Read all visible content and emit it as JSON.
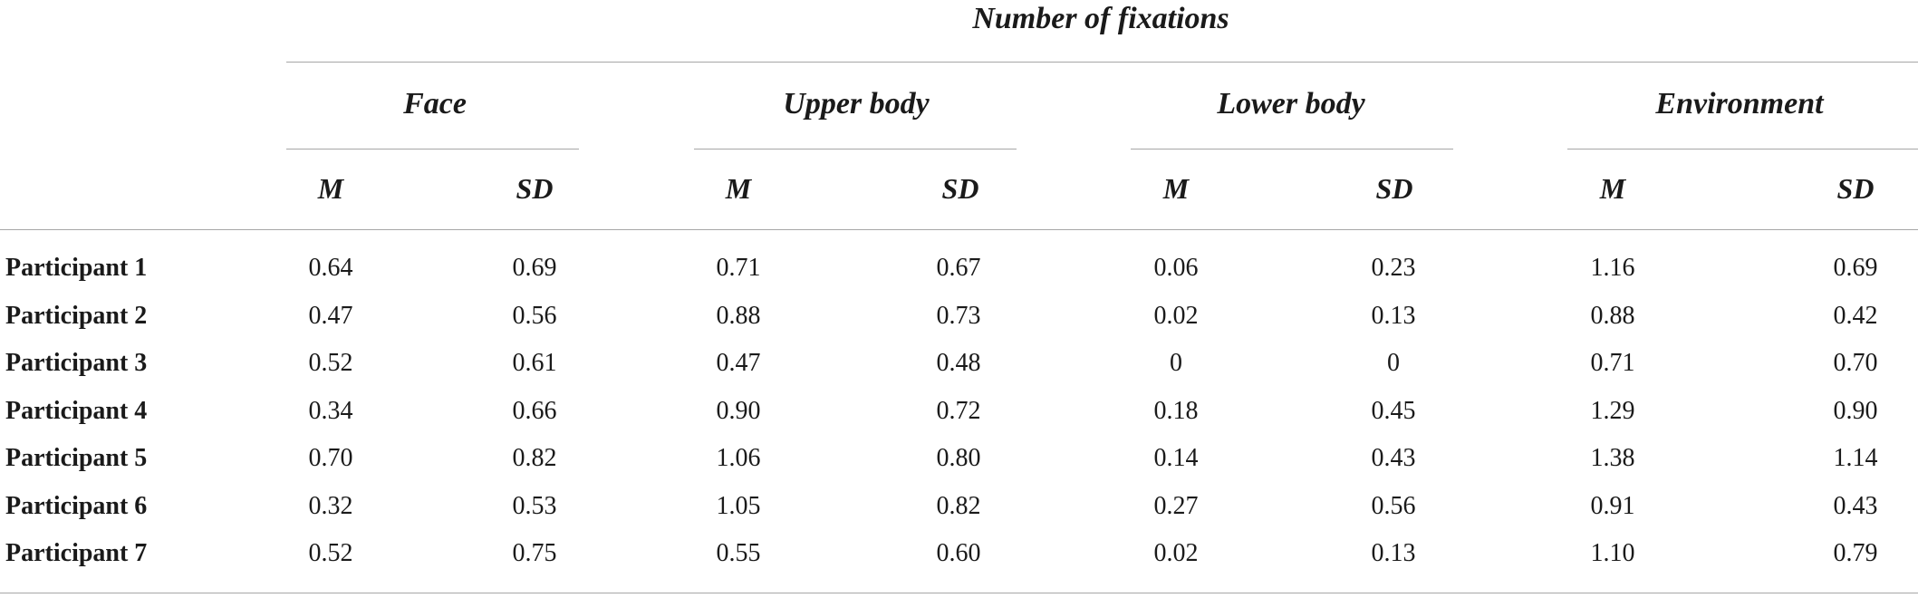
{
  "table": {
    "spanner": "Number of fixations",
    "groups": [
      "Face",
      "Upper body",
      "Lower body",
      "Environment"
    ],
    "stat_labels": [
      "M",
      "SD"
    ],
    "rows": [
      {
        "label": "Participant 1",
        "values": [
          "0.64",
          "0.69",
          "0.71",
          "0.67",
          "0.06",
          "0.23",
          "1.16",
          "0.69"
        ]
      },
      {
        "label": "Participant 2",
        "values": [
          "0.47",
          "0.56",
          "0.88",
          "0.73",
          "0.02",
          "0.13",
          "0.88",
          "0.42"
        ]
      },
      {
        "label": "Participant 3",
        "values": [
          "0.52",
          "0.61",
          "0.47",
          "0.48",
          "0",
          "0",
          "0.71",
          "0.70"
        ]
      },
      {
        "label": "Participant 4",
        "values": [
          "0.34",
          "0.66",
          "0.90",
          "0.72",
          "0.18",
          "0.45",
          "1.29",
          "0.90"
        ]
      },
      {
        "label": "Participant 5",
        "values": [
          "0.70",
          "0.82",
          "1.06",
          "0.80",
          "0.14",
          "0.43",
          "1.38",
          "1.14"
        ]
      },
      {
        "label": "Participant 6",
        "values": [
          "0.32",
          "0.53",
          "1.05",
          "0.82",
          "0.27",
          "0.56",
          "0.91",
          "0.43"
        ]
      },
      {
        "label": "Participant 7",
        "values": [
          "0.52",
          "0.75",
          "0.55",
          "0.60",
          "0.02",
          "0.13",
          "1.10",
          "0.79"
        ]
      }
    ]
  }
}
